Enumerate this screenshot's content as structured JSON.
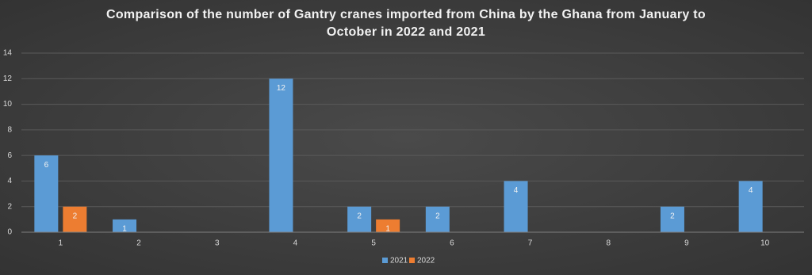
{
  "chart_data": {
    "type": "bar",
    "title": "Comparison of the number of Gantry cranes imported from China by the Ghana from January to October in 2022 and 2021",
    "categories": [
      "1",
      "2",
      "3",
      "4",
      "5",
      "6",
      "7",
      "8",
      "9",
      "10"
    ],
    "series": [
      {
        "name": "2021",
        "color": "#5b9bd5",
        "values": [
          6,
          1,
          null,
          12,
          2,
          2,
          4,
          null,
          2,
          4
        ]
      },
      {
        "name": "2022",
        "color": "#ed7d31",
        "values": [
          2,
          null,
          null,
          null,
          1,
          null,
          null,
          null,
          null,
          null
        ]
      }
    ],
    "ylim": [
      0,
      14
    ],
    "yticks": [
      0,
      2,
      4,
      6,
      8,
      10,
      12,
      14
    ],
    "grid": true,
    "legend": "bottom"
  }
}
